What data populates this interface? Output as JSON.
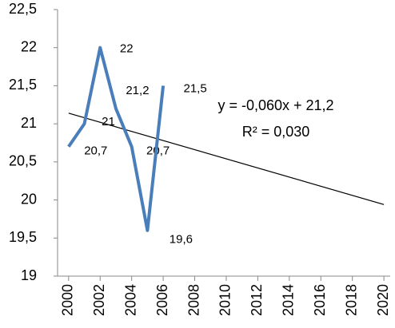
{
  "chart_data": {
    "type": "line",
    "x": [
      2000,
      2001,
      2002,
      2003,
      2004,
      2005,
      2006
    ],
    "series": [
      {
        "color": "#4a7ebb",
        "values": [
          20.7,
          21,
          22,
          21.2,
          20.7,
          19.6,
          21.5
        ],
        "value_labels": [
          "20,7",
          "21",
          "22",
          "21,2",
          "20,7",
          "19,6",
          "21,5"
        ]
      }
    ],
    "trendline": {
      "color": "#000000",
      "x": [
        2000,
        2020
      ],
      "values": [
        21.14,
        19.94
      ]
    },
    "annotations": [
      "y = -0,060x + 21,2",
      "R² = 0,030"
    ],
    "xlim": [
      1999.3,
      2020.4
    ],
    "xticks": [
      2000,
      2002,
      2004,
      2006,
      2008,
      2010,
      2012,
      2014,
      2016,
      2018,
      2020
    ],
    "ylim": [
      19,
      22.5
    ],
    "yticks": [
      19,
      {
        "value": 19.5,
        "label": "19,5"
      },
      20,
      {
        "value": 20.5,
        "label": "20,5"
      },
      21,
      {
        "value": 21.5,
        "label": "21,5"
      },
      22,
      {
        "value": 22.5,
        "label": "22,5"
      }
    ],
    "grid": false
  }
}
